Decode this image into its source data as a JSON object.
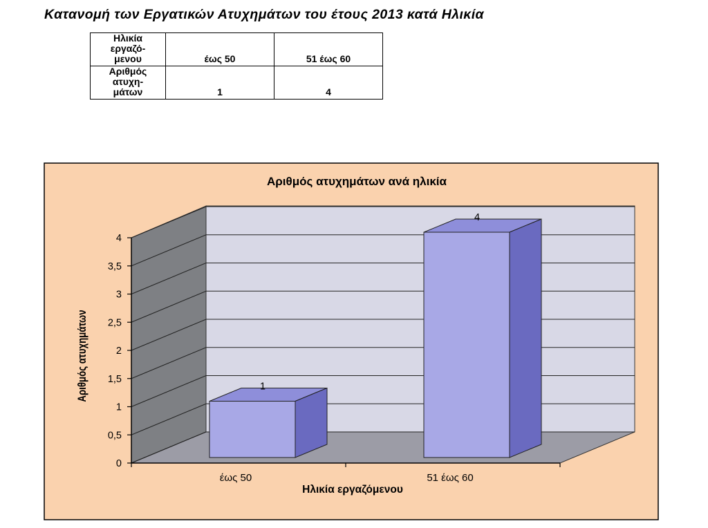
{
  "page": {
    "title": "Κατανομή των Εργατικών Ατυχημάτων του έτους 2013 κατά Ηλικία"
  },
  "table": {
    "rows": [
      {
        "label": "Ηλικία\nεργαζό-\nμενου",
        "cells": [
          "έως 50",
          "51 έως 60"
        ]
      },
      {
        "label": "Αριθμός\nατυχη-\nμάτων",
        "cells": [
          "1",
          "4"
        ]
      }
    ]
  },
  "chart_data": {
    "type": "bar",
    "title": "Αριθμός ατυχημάτων ανά ηλικία",
    "categories": [
      "έως 50",
      "51 έως 60"
    ],
    "values": [
      1,
      4
    ],
    "data_labels": [
      "1",
      "4"
    ],
    "xlabel": "Ηλικία εργαζόμενου",
    "ylabel": "Αριθμός ατυχημάτων",
    "ylim": [
      0,
      4
    ],
    "yticks": [
      "0",
      "0,5",
      "1",
      "1,5",
      "2",
      "2,5",
      "3",
      "3,5",
      "4"
    ],
    "grid": true,
    "legend": "none",
    "three_d": true,
    "colors": {
      "chart_area": "#FAD2AE",
      "plot_back_wall": "#D8D8E6",
      "side_wall": "#7E8084",
      "floor": "#9C9CA6",
      "bar_front": "#A8A8E6",
      "bar_top": "#8E8EDA",
      "bar_side": "#6A6AC0"
    }
  }
}
